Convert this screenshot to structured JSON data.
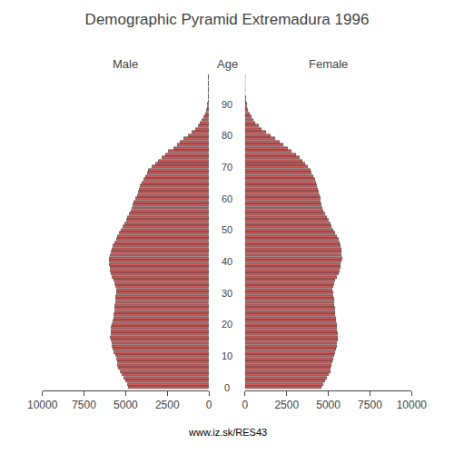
{
  "chart_data": {
    "type": "bar",
    "orientation": "horizontal",
    "title": "Demographic Pyramid Extremadura 1996",
    "ylabel": "Age",
    "annotations": [
      "www.iz.sk/RES43"
    ],
    "y": [
      0,
      1,
      2,
      3,
      4,
      5,
      6,
      7,
      8,
      9,
      10,
      11,
      12,
      13,
      14,
      15,
      16,
      17,
      18,
      19,
      20,
      21,
      22,
      23,
      24,
      25,
      26,
      27,
      28,
      29,
      30,
      31,
      32,
      33,
      34,
      35,
      36,
      37,
      38,
      39,
      40,
      41,
      42,
      43,
      44,
      45,
      46,
      47,
      48,
      49,
      50,
      51,
      52,
      53,
      54,
      55,
      56,
      57,
      58,
      59,
      60,
      61,
      62,
      63,
      64,
      65,
      66,
      67,
      68,
      69,
      70,
      71,
      72,
      73,
      74,
      75,
      76,
      77,
      78,
      79,
      80,
      81,
      82,
      83,
      84,
      85,
      86,
      87,
      88,
      89,
      90,
      91,
      92,
      93,
      94,
      95,
      96,
      97,
      98,
      99
    ],
    "series": [
      {
        "name": "Male",
        "color": "#cd5c5c",
        "values": [
          4800,
          4900,
          5000,
          5100,
          5200,
          5300,
          5400,
          5450,
          5500,
          5550,
          5600,
          5700,
          5750,
          5800,
          5820,
          5850,
          5900,
          5880,
          5860,
          5840,
          5800,
          5750,
          5700,
          5680,
          5660,
          5640,
          5620,
          5600,
          5580,
          5560,
          5540,
          5520,
          5580,
          5640,
          5700,
          5780,
          5850,
          5900,
          5920,
          5940,
          5960,
          5950,
          5900,
          5850,
          5800,
          5750,
          5650,
          5550,
          5450,
          5350,
          5250,
          5150,
          5050,
          4950,
          4850,
          4750,
          4650,
          4600,
          4550,
          4480,
          4400,
          4300,
          4200,
          4150,
          4100,
          4000,
          3900,
          3800,
          3700,
          3600,
          3400,
          3200,
          3000,
          2800,
          2600,
          2400,
          2100,
          1900,
          1700,
          1500,
          1200,
          1000,
          800,
          650,
          500,
          380,
          280,
          200,
          140,
          90,
          60,
          40,
          25,
          15,
          10,
          6,
          4,
          2,
          1,
          1
        ]
      },
      {
        "name": "Female",
        "color": "#cd5c5c",
        "values": [
          4600,
          4700,
          4800,
          4900,
          5000,
          5100,
          5150,
          5200,
          5250,
          5300,
          5350,
          5400,
          5450,
          5500,
          5520,
          5540,
          5560,
          5540,
          5520,
          5500,
          5480,
          5460,
          5440,
          5420,
          5400,
          5380,
          5360,
          5340,
          5320,
          5300,
          5280,
          5260,
          5300,
          5350,
          5400,
          5500,
          5600,
          5680,
          5720,
          5750,
          5800,
          5820,
          5800,
          5780,
          5760,
          5740,
          5680,
          5600,
          5520,
          5420,
          5300,
          5200,
          5100,
          5000,
          4900,
          4800,
          4700,
          4650,
          4600,
          4550,
          4500,
          4450,
          4400,
          4350,
          4300,
          4250,
          4180,
          4100,
          4000,
          3900,
          3750,
          3600,
          3450,
          3250,
          3050,
          2800,
          2550,
          2300,
          2050,
          1800,
          1500,
          1250,
          1000,
          800,
          620,
          480,
          360,
          260,
          190,
          130,
          90,
          60,
          38,
          25,
          16,
          10,
          6,
          3,
          2,
          1
        ]
      }
    ],
    "xlim": [
      0,
      10000
    ],
    "xticks": [
      0,
      2500,
      5000,
      7500,
      10000
    ],
    "ylim": [
      -1,
      100
    ],
    "yticks": [
      0,
      10,
      20,
      30,
      40,
      50,
      60,
      70,
      80,
      90
    ],
    "grid": false
  }
}
